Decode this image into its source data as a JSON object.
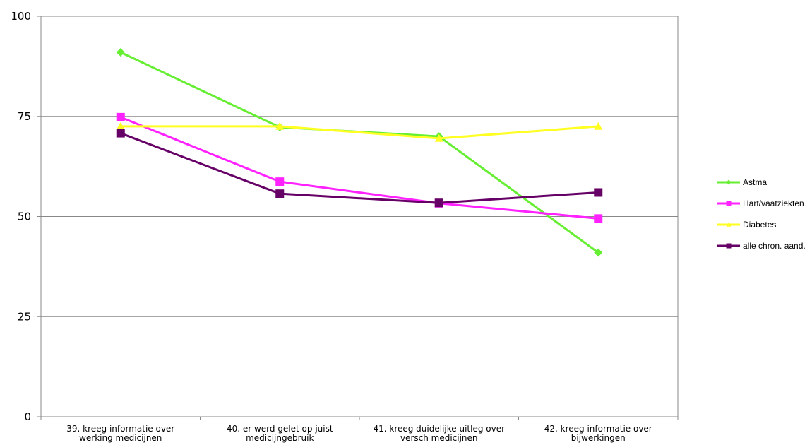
{
  "chart_data": {
    "type": "line",
    "categories": [
      [
        "39. kreeg informatie over",
        "werking medicijnen"
      ],
      [
        "40. er werd gelet op juist",
        "medicijngebruik"
      ],
      [
        "41. kreeg duidelijke uitleg over",
        "versch medicijnen"
      ],
      [
        "42. kreeg informatie over",
        "bijwerkingen"
      ]
    ],
    "y_ticks": [
      "0",
      "25",
      "50",
      "75",
      "100"
    ],
    "ylim": [
      0,
      100
    ],
    "grid": true,
    "legend_position": "right",
    "series": [
      {
        "name": "Astma",
        "color": "#66ee33",
        "marker": "diamond",
        "values": [
          91,
          72.3,
          70,
          41
        ]
      },
      {
        "name": "Hart/vaatziekten",
        "color": "#ff22ff",
        "marker": "square",
        "values": [
          74.8,
          58.7,
          53.3,
          49.5
        ]
      },
      {
        "name": "Diabetes",
        "color": "#ffff22",
        "marker": "triangle",
        "values": [
          72.5,
          72.5,
          69.5,
          72.5
        ]
      },
      {
        "name": "alle chron. aand.",
        "color": "#660066",
        "marker": "square",
        "values": [
          70.8,
          55.7,
          53.4,
          56
        ]
      }
    ]
  }
}
